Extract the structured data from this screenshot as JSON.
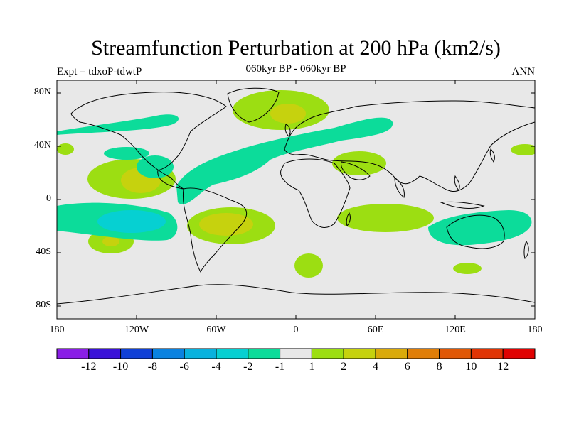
{
  "title": "Streamfunction Perturbation at 200 hPa (km2/s)",
  "subtitle": "060kyr BP - 060kyr BP",
  "left_label": "Expt = tdxoP-tdwtP",
  "right_label": "ANN",
  "lat_labels": [
    "80N",
    "40N",
    "0",
    "40S",
    "80S"
  ],
  "lon_labels": [
    "180",
    "120W",
    "60W",
    "0",
    "60E",
    "120E",
    "180"
  ],
  "colorbar": {
    "labels": [
      "-12",
      "-10",
      "-8",
      "-6",
      "-4",
      "-2",
      "-1",
      "1",
      "2",
      "4",
      "6",
      "8",
      "10",
      "12"
    ],
    "colors": [
      "#8a1ee6",
      "#3a12d8",
      "#1040d6",
      "#0a82e0",
      "#08b2de",
      "#06d0d2",
      "#0cdc9a",
      "#e8e8e8",
      "#9cde12",
      "#c6d20e",
      "#daaa0a",
      "#e07e08",
      "#e05806",
      "#e03404",
      "#e00202"
    ]
  },
  "colors": {
    "ocean": "#e8e8e8",
    "pos1": "#9cde12",
    "pos2": "#c6d20e",
    "neg1": "#0cdc9a",
    "neg2": "#06d0d2"
  }
}
